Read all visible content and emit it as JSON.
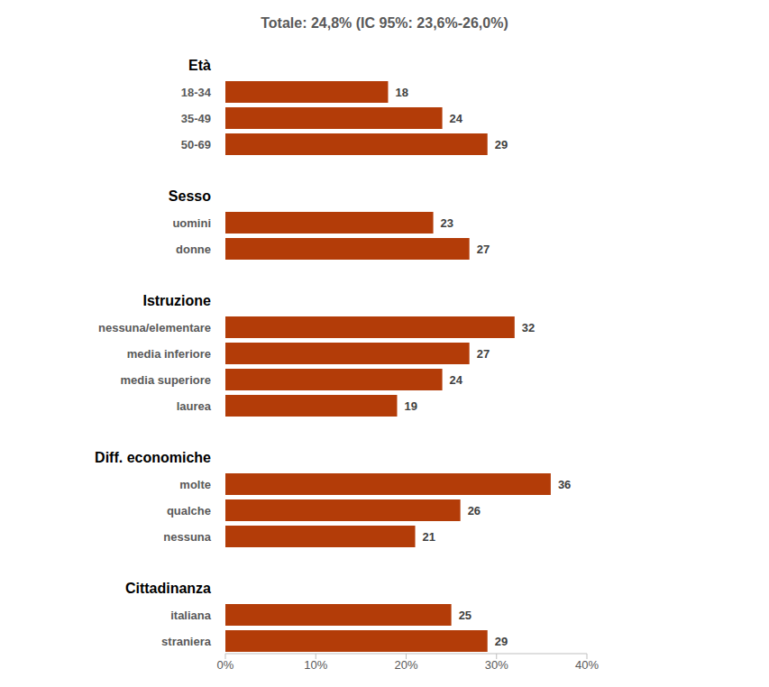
{
  "chart_data": {
    "type": "bar",
    "orientation": "horizontal",
    "title": "Totale: 24,8% (IC 95%: 23,6%-26,0%)",
    "groups": [
      {
        "label": "Età",
        "categories": [
          "18-34",
          "35-49",
          "50-69"
        ],
        "values": [
          18,
          24,
          29
        ]
      },
      {
        "label": "Sesso",
        "categories": [
          "uomini",
          "donne"
        ],
        "values": [
          23,
          27
        ]
      },
      {
        "label": "Istruzione",
        "categories": [
          "nessuna/elementare",
          "media inferiore",
          "media superiore",
          "laurea"
        ],
        "values": [
          32,
          27,
          24,
          19
        ]
      },
      {
        "label": "Diff. economiche",
        "categories": [
          "molte",
          "qualche",
          "nessuna"
        ],
        "values": [
          36,
          26,
          21
        ]
      },
      {
        "label": "Cittadinanza",
        "categories": [
          "italiana",
          "straniera"
        ],
        "values": [
          25,
          29
        ]
      }
    ],
    "color": "#b33c08",
    "xlim": [
      0,
      40
    ],
    "xticks": [
      {
        "value": 0,
        "label": "0%"
      },
      {
        "value": 10,
        "label": "10%"
      },
      {
        "value": 20,
        "label": "20%"
      },
      {
        "value": 30,
        "label": "30%"
      },
      {
        "value": 40,
        "label": "40%"
      }
    ],
    "data_labels": true,
    "grid": false
  }
}
